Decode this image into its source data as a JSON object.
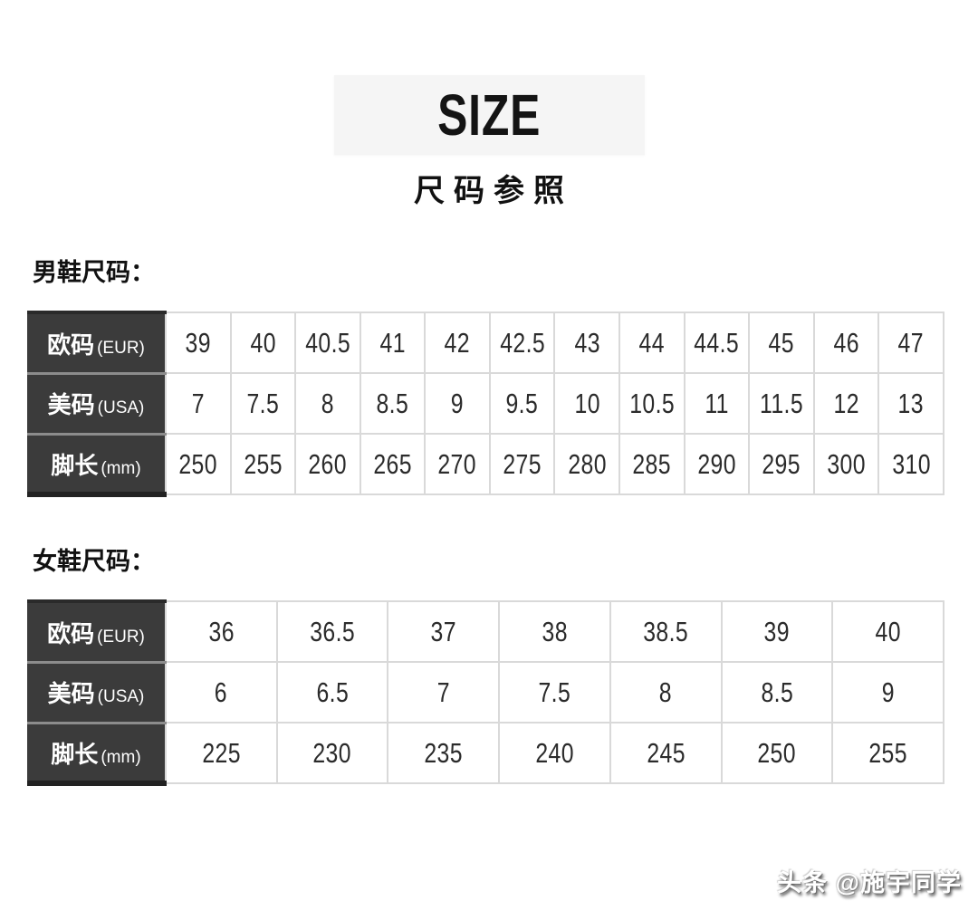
{
  "header": {
    "title": "SIZE",
    "subtitle": "尺码参照"
  },
  "men_section": {
    "heading": "男鞋尺码：",
    "rows": [
      {
        "label": "欧码",
        "unit": "(EUR)",
        "values": [
          "39",
          "40",
          "40.5",
          "41",
          "42",
          "42.5",
          "43",
          "44",
          "44.5",
          "45",
          "46",
          "47"
        ]
      },
      {
        "label": "美码",
        "unit": "(USA)",
        "values": [
          "7",
          "7.5",
          "8",
          "8.5",
          "9",
          "9.5",
          "10",
          "10.5",
          "11",
          "11.5",
          "12",
          "13"
        ]
      },
      {
        "label": "脚长",
        "unit": "(mm)",
        "values": [
          "250",
          "255",
          "260",
          "265",
          "270",
          "275",
          "280",
          "285",
          "290",
          "295",
          "300",
          "310"
        ]
      }
    ]
  },
  "women_section": {
    "heading": "女鞋尺码：",
    "rows": [
      {
        "label": "欧码",
        "unit": "(EUR)",
        "values": [
          "36",
          "36.5",
          "37",
          "38",
          "38.5",
          "39",
          "40"
        ]
      },
      {
        "label": "美码",
        "unit": "(USA)",
        "values": [
          "6",
          "6.5",
          "7",
          "7.5",
          "8",
          "8.5",
          "9"
        ]
      },
      {
        "label": "脚长",
        "unit": "(mm)",
        "values": [
          "225",
          "230",
          "235",
          "240",
          "245",
          "250",
          "255"
        ]
      }
    ]
  },
  "watermark": {
    "text": "头条 @施宇同学"
  },
  "colors": {
    "header_cell_bg": "#3b3b3b",
    "header_cell_text": "#ffffff",
    "table_border": "#d9d9d9",
    "title_box_bg": "#f5f5f5",
    "body_text": "#2b2b2b"
  }
}
